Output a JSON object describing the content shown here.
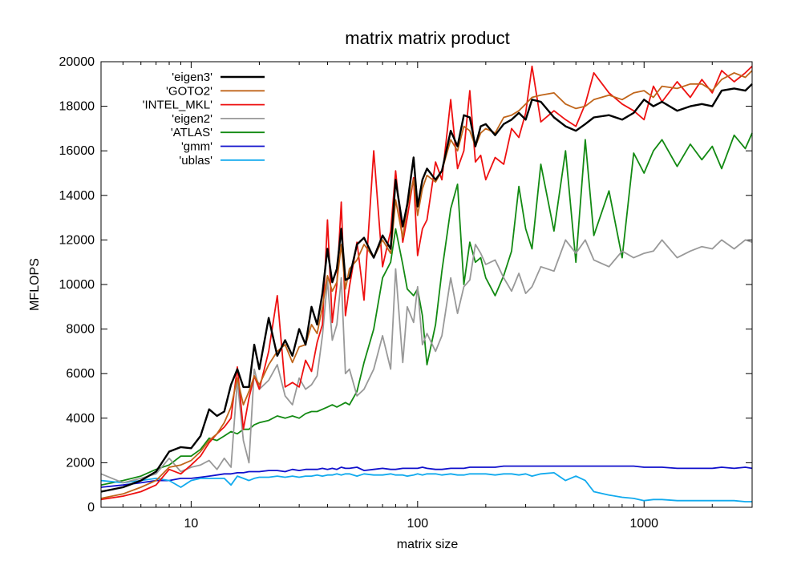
{
  "chart_data": {
    "type": "line",
    "title": "matrix matrix product",
    "xlabel": "matrix size",
    "ylabel": "MFLOPS",
    "xscale": "log",
    "xlim": [
      4,
      3000
    ],
    "ylim": [
      0,
      20000
    ],
    "xticks": [
      10,
      100,
      1000
    ],
    "xtick_labels": [
      "10",
      "100",
      "1000"
    ],
    "yticks": [
      0,
      2000,
      4000,
      6000,
      8000,
      10000,
      12000,
      14000,
      16000,
      18000,
      20000
    ],
    "ytick_labels": [
      "0",
      "2000",
      "4000",
      "6000",
      "8000",
      "10000",
      "12000",
      "14000",
      "16000",
      "18000",
      "20000"
    ],
    "legend_position": "top-left",
    "series": [
      {
        "name": "'eigen3'",
        "color": "#000000",
        "x": [
          4,
          5,
          6,
          7,
          8,
          9,
          10,
          11,
          12,
          13,
          14,
          15,
          16,
          17,
          18,
          19,
          20,
          22,
          24,
          26,
          28,
          30,
          32,
          34,
          36,
          38,
          40,
          42,
          44,
          46,
          48,
          50,
          54,
          58,
          64,
          70,
          76,
          80,
          86,
          90,
          96,
          100,
          105,
          110,
          120,
          128,
          140,
          150,
          160,
          170,
          180,
          190,
          200,
          220,
          240,
          260,
          280,
          300,
          320,
          350,
          400,
          450,
          500,
          550,
          600,
          700,
          800,
          900,
          1000,
          1100,
          1200,
          1400,
          1600,
          1800,
          2000,
          2200,
          2500,
          2800,
          3000
        ],
        "y": [
          700,
          900,
          1200,
          1600,
          2500,
          2700,
          2650,
          3200,
          4400,
          4100,
          4300,
          5500,
          6200,
          5400,
          5400,
          7300,
          6200,
          8500,
          6800,
          7500,
          6800,
          8000,
          7300,
          9000,
          8200,
          9600,
          11600,
          10100,
          10700,
          12500,
          10200,
          10300,
          11800,
          12100,
          11200,
          12200,
          11600,
          14700,
          12600,
          13600,
          15700,
          13500,
          14700,
          15200,
          14700,
          15100,
          16900,
          16200,
          17600,
          17500,
          16200,
          17100,
          17200,
          16700,
          17200,
          17400,
          17700,
          17400,
          18300,
          18200,
          17500,
          17100,
          16900,
          17200,
          17500,
          17600,
          17400,
          17700,
          18300,
          18000,
          18200,
          17800,
          18000,
          18100,
          18000,
          18700,
          18800,
          18700,
          19000
        ]
      },
      {
        "name": "'GOTO2'",
        "color": "#c0651a",
        "x": [
          4,
          5,
          6,
          7,
          8,
          9,
          10,
          11,
          12,
          13,
          14,
          15,
          16,
          17,
          18,
          19,
          20,
          22,
          24,
          26,
          28,
          30,
          32,
          34,
          36,
          38,
          40,
          42,
          44,
          46,
          48,
          50,
          54,
          58,
          64,
          70,
          76,
          80,
          86,
          90,
          96,
          100,
          105,
          110,
          120,
          128,
          140,
          150,
          160,
          170,
          180,
          190,
          200,
          220,
          240,
          260,
          280,
          300,
          320,
          350,
          400,
          450,
          500,
          550,
          600,
          700,
          800,
          900,
          1000,
          1100,
          1200,
          1400,
          1600,
          1800,
          2000,
          2200,
          2500,
          2800,
          3000
        ],
        "y": [
          400,
          600,
          900,
          1200,
          1800,
          1900,
          2100,
          2500,
          3000,
          3300,
          3800,
          4500,
          5800,
          4600,
          5200,
          5900,
          5500,
          6400,
          7000,
          7300,
          6500,
          7200,
          7300,
          8200,
          7800,
          9000,
          10400,
          9700,
          10100,
          11800,
          9800,
          10700,
          11100,
          11800,
          11200,
          12000,
          11400,
          13800,
          12100,
          13500,
          14700,
          13100,
          14300,
          14900,
          14600,
          15100,
          16500,
          16000,
          17100,
          16900,
          16200,
          16800,
          17000,
          16800,
          17500,
          17600,
          17800,
          18100,
          18400,
          18500,
          18600,
          18100,
          17900,
          18000,
          18300,
          18500,
          18300,
          18600,
          18700,
          18400,
          18900,
          18800,
          19000,
          19000,
          18700,
          19200,
          19500,
          19300,
          19600
        ]
      },
      {
        "name": "'INTEL_MKL'",
        "color": "#ee1111",
        "x": [
          4,
          5,
          6,
          7,
          8,
          9,
          10,
          11,
          12,
          13,
          14,
          15,
          16,
          17,
          18,
          19,
          20,
          22,
          24,
          26,
          28,
          30,
          32,
          34,
          36,
          38,
          40,
          42,
          44,
          46,
          48,
          50,
          54,
          58,
          64,
          70,
          76,
          80,
          86,
          90,
          96,
          100,
          105,
          110,
          120,
          128,
          140,
          150,
          160,
          170,
          180,
          190,
          200,
          220,
          240,
          260,
          280,
          300,
          320,
          350,
          400,
          450,
          500,
          550,
          600,
          700,
          800,
          900,
          1000,
          1100,
          1200,
          1400,
          1600,
          1800,
          2000,
          2200,
          2500,
          2800,
          3000
        ],
        "y": [
          350,
          500,
          700,
          1000,
          1700,
          1500,
          1900,
          2300,
          2900,
          3300,
          3600,
          4000,
          6300,
          3500,
          4900,
          5900,
          5300,
          7000,
          9500,
          5400,
          5600,
          5400,
          6600,
          6100,
          7400,
          8200,
          12900,
          8300,
          10000,
          13700,
          8600,
          9900,
          11900,
          9300,
          16000,
          10800,
          12400,
          15100,
          11900,
          13000,
          14800,
          11300,
          12500,
          12900,
          15500,
          14700,
          18300,
          15200,
          16000,
          18700,
          15500,
          15800,
          14700,
          15700,
          15400,
          17000,
          16600,
          17700,
          19800,
          17300,
          17800,
          17400,
          17100,
          18100,
          19500,
          18600,
          18100,
          17800,
          17400,
          18900,
          18200,
          19100,
          18400,
          19200,
          18600,
          19600,
          19100,
          19500,
          19800
        ]
      },
      {
        "name": "'eigen2'",
        "color": "#999999",
        "x": [
          4,
          5,
          6,
          7,
          8,
          9,
          10,
          11,
          12,
          13,
          14,
          15,
          16,
          17,
          18,
          19,
          20,
          22,
          24,
          26,
          28,
          30,
          32,
          34,
          36,
          38,
          40,
          42,
          44,
          46,
          48,
          50,
          54,
          58,
          64,
          70,
          76,
          80,
          86,
          90,
          96,
          100,
          105,
          110,
          120,
          128,
          140,
          150,
          160,
          170,
          180,
          190,
          200,
          220,
          240,
          260,
          280,
          300,
          320,
          350,
          400,
          450,
          500,
          550,
          600,
          700,
          800,
          900,
          1000,
          1100,
          1200,
          1400,
          1600,
          1800,
          2000,
          2200,
          2500,
          2800,
          3000
        ],
        "y": [
          1500,
          1100,
          1300,
          1500,
          2200,
          1600,
          1800,
          1900,
          2100,
          1700,
          2200,
          1800,
          5700,
          3000,
          2000,
          6200,
          5300,
          5700,
          6400,
          5000,
          4600,
          5800,
          5300,
          5500,
          5900,
          7700,
          10200,
          7500,
          8200,
          10300,
          6000,
          6200,
          5000,
          5300,
          6200,
          7700,
          6200,
          10700,
          6500,
          9000,
          8300,
          9900,
          7300,
          7800,
          7000,
          7700,
          10300,
          8700,
          9900,
          10200,
          11800,
          11400,
          10900,
          11100,
          10300,
          9700,
          10500,
          9600,
          9900,
          10800,
          10600,
          12000,
          11400,
          12000,
          11100,
          10800,
          11500,
          11200,
          11400,
          11500,
          12000,
          11200,
          11500,
          11700,
          11600,
          12000,
          11600,
          12000,
          11900
        ]
      },
      {
        "name": "'ATLAS'",
        "color": "#138a13",
        "x": [
          4,
          5,
          6,
          7,
          8,
          9,
          10,
          11,
          12,
          13,
          14,
          15,
          16,
          17,
          18,
          19,
          20,
          22,
          24,
          26,
          28,
          30,
          32,
          34,
          36,
          38,
          40,
          42,
          44,
          46,
          48,
          50,
          54,
          58,
          64,
          70,
          76,
          80,
          86,
          90,
          96,
          100,
          105,
          110,
          120,
          128,
          140,
          150,
          160,
          170,
          180,
          190,
          200,
          220,
          240,
          260,
          280,
          300,
          320,
          350,
          400,
          450,
          500,
          550,
          600,
          700,
          800,
          900,
          1000,
          1100,
          1200,
          1400,
          1600,
          1800,
          2000,
          2200,
          2500,
          2800,
          3000
        ],
        "y": [
          1000,
          1200,
          1400,
          1700,
          1900,
          2300,
          2300,
          2600,
          3100,
          3000,
          3200,
          3400,
          3300,
          3500,
          3500,
          3700,
          3800,
          3900,
          4100,
          4000,
          4100,
          4000,
          4200,
          4300,
          4300,
          4400,
          4500,
          4600,
          4500,
          4600,
          4700,
          4600,
          5200,
          6500,
          8000,
          10300,
          11000,
          12500,
          10900,
          9800,
          9500,
          9800,
          8600,
          6400,
          8200,
          10600,
          13400,
          14500,
          10000,
          11900,
          11000,
          11200,
          10300,
          9500,
          10400,
          11500,
          14400,
          12500,
          11600,
          15400,
          12400,
          16000,
          11000,
          16500,
          12200,
          14200,
          11200,
          15900,
          15000,
          16000,
          16500,
          15300,
          16300,
          15600,
          16200,
          15200,
          16700,
          16100,
          16800
        ]
      },
      {
        "name": "'gmm'",
        "color": "#1010cc",
        "x": [
          4,
          5,
          6,
          7,
          8,
          9,
          10,
          11,
          12,
          13,
          14,
          15,
          16,
          17,
          18,
          19,
          20,
          22,
          24,
          26,
          28,
          30,
          32,
          34,
          36,
          38,
          40,
          42,
          44,
          46,
          48,
          50,
          54,
          58,
          64,
          70,
          76,
          80,
          86,
          90,
          96,
          100,
          105,
          110,
          120,
          128,
          140,
          150,
          160,
          170,
          180,
          190,
          200,
          220,
          240,
          260,
          280,
          300,
          320,
          350,
          400,
          450,
          500,
          550,
          600,
          700,
          800,
          900,
          1000,
          1100,
          1200,
          1400,
          1600,
          1800,
          2000,
          2200,
          2500,
          2800,
          3000
        ],
        "y": [
          900,
          1000,
          1100,
          1200,
          1200,
          1300,
          1300,
          1350,
          1400,
          1450,
          1500,
          1500,
          1550,
          1550,
          1600,
          1600,
          1600,
          1650,
          1650,
          1600,
          1700,
          1650,
          1700,
          1700,
          1700,
          1750,
          1700,
          1750,
          1700,
          1800,
          1750,
          1750,
          1800,
          1650,
          1700,
          1750,
          1700,
          1700,
          1750,
          1750,
          1750,
          1750,
          1800,
          1750,
          1700,
          1700,
          1750,
          1750,
          1750,
          1800,
          1800,
          1800,
          1800,
          1800,
          1850,
          1850,
          1850,
          1850,
          1850,
          1850,
          1850,
          1850,
          1850,
          1850,
          1850,
          1850,
          1850,
          1850,
          1800,
          1800,
          1800,
          1750,
          1750,
          1750,
          1750,
          1800,
          1750,
          1800,
          1750
        ]
      },
      {
        "name": "'ublas'",
        "color": "#11aaee",
        "x": [
          4,
          5,
          6,
          7,
          8,
          9,
          10,
          11,
          12,
          13,
          14,
          15,
          16,
          17,
          18,
          19,
          20,
          22,
          24,
          26,
          28,
          30,
          32,
          34,
          36,
          38,
          40,
          42,
          44,
          46,
          48,
          50,
          54,
          58,
          64,
          70,
          76,
          80,
          86,
          90,
          96,
          100,
          105,
          110,
          120,
          128,
          140,
          150,
          160,
          170,
          180,
          190,
          200,
          220,
          240,
          260,
          280,
          300,
          320,
          350,
          400,
          450,
          500,
          550,
          600,
          700,
          800,
          900,
          1000,
          1100,
          1200,
          1400,
          1600,
          1800,
          2000,
          2200,
          2500,
          2800,
          3000
        ],
        "y": [
          1200,
          1100,
          1200,
          1300,
          1200,
          900,
          1200,
          1300,
          1300,
          1300,
          1300,
          1000,
          1400,
          1300,
          1200,
          1300,
          1350,
          1350,
          1400,
          1350,
          1400,
          1350,
          1400,
          1400,
          1450,
          1400,
          1450,
          1450,
          1500,
          1450,
          1500,
          1500,
          1400,
          1500,
          1450,
          1450,
          1500,
          1450,
          1450,
          1400,
          1450,
          1500,
          1450,
          1500,
          1500,
          1450,
          1500,
          1450,
          1450,
          1500,
          1500,
          1500,
          1500,
          1450,
          1500,
          1500,
          1450,
          1500,
          1400,
          1500,
          1550,
          1200,
          1400,
          1200,
          700,
          550,
          450,
          400,
          300,
          350,
          350,
          300,
          300,
          300,
          300,
          300,
          300,
          250,
          250
        ]
      }
    ]
  }
}
